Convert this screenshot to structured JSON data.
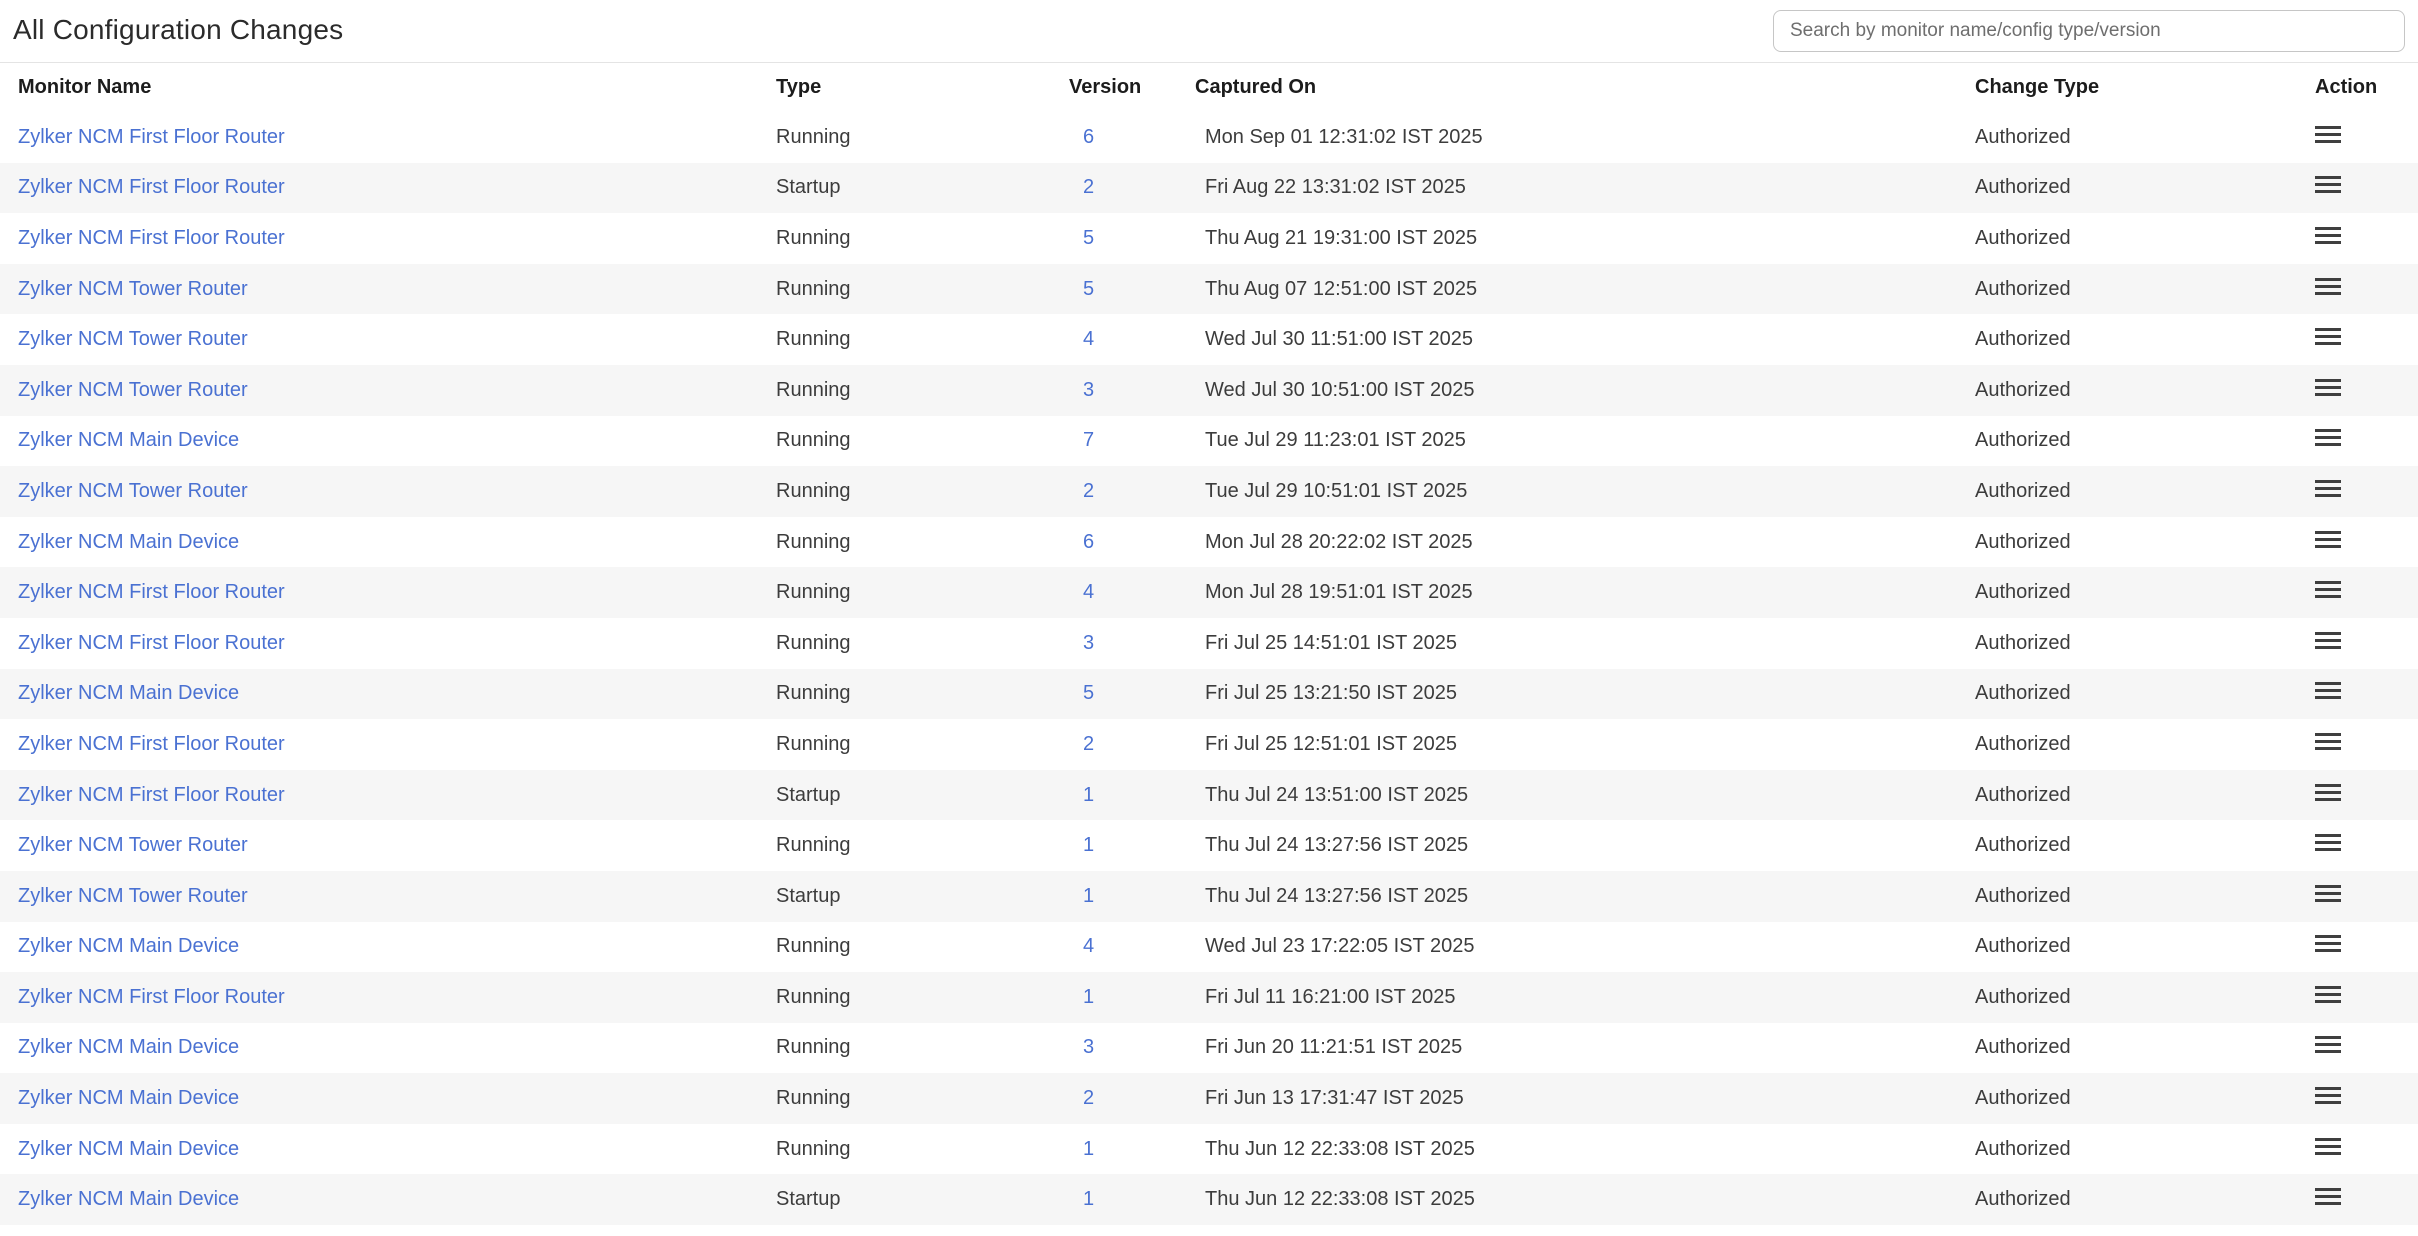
{
  "header": {
    "title": "All Configuration Changes",
    "search_placeholder": "Search by monitor name/config type/version"
  },
  "table": {
    "columns": [
      "Monitor Name",
      "Type",
      "Version",
      "Captured On",
      "Change Type",
      "Action"
    ],
    "action_icon": "menu-icon",
    "rows": [
      {
        "monitor": "Zylker NCM First Floor Router",
        "type": "Running",
        "version": "6",
        "captured_on": "Mon Sep 01 12:31:02 IST 2025",
        "change_type": "Authorized"
      },
      {
        "monitor": "Zylker NCM First Floor Router",
        "type": "Startup",
        "version": "2",
        "captured_on": "Fri Aug 22 13:31:02 IST 2025",
        "change_type": "Authorized"
      },
      {
        "monitor": "Zylker NCM First Floor Router",
        "type": "Running",
        "version": "5",
        "captured_on": "Thu Aug 21 19:31:00 IST 2025",
        "change_type": "Authorized"
      },
      {
        "monitor": "Zylker NCM Tower Router",
        "type": "Running",
        "version": "5",
        "captured_on": "Thu Aug 07 12:51:00 IST 2025",
        "change_type": "Authorized"
      },
      {
        "monitor": "Zylker NCM Tower Router",
        "type": "Running",
        "version": "4",
        "captured_on": "Wed Jul 30 11:51:00 IST 2025",
        "change_type": "Authorized"
      },
      {
        "monitor": "Zylker NCM Tower Router",
        "type": "Running",
        "version": "3",
        "captured_on": "Wed Jul 30 10:51:00 IST 2025",
        "change_type": "Authorized"
      },
      {
        "monitor": "Zylker NCM Main Device",
        "type": "Running",
        "version": "7",
        "captured_on": "Tue Jul 29 11:23:01 IST 2025",
        "change_type": "Authorized"
      },
      {
        "monitor": "Zylker NCM Tower Router",
        "type": "Running",
        "version": "2",
        "captured_on": "Tue Jul 29 10:51:01 IST 2025",
        "change_type": "Authorized"
      },
      {
        "monitor": "Zylker NCM Main Device",
        "type": "Running",
        "version": "6",
        "captured_on": "Mon Jul 28 20:22:02 IST 2025",
        "change_type": "Authorized"
      },
      {
        "monitor": "Zylker NCM First Floor Router",
        "type": "Running",
        "version": "4",
        "captured_on": "Mon Jul 28 19:51:01 IST 2025",
        "change_type": "Authorized"
      },
      {
        "monitor": "Zylker NCM First Floor Router",
        "type": "Running",
        "version": "3",
        "captured_on": "Fri Jul 25 14:51:01 IST 2025",
        "change_type": "Authorized"
      },
      {
        "monitor": "Zylker NCM Main Device",
        "type": "Running",
        "version": "5",
        "captured_on": "Fri Jul 25 13:21:50 IST 2025",
        "change_type": "Authorized"
      },
      {
        "monitor": "Zylker NCM First Floor Router",
        "type": "Running",
        "version": "2",
        "captured_on": "Fri Jul 25 12:51:01 IST 2025",
        "change_type": "Authorized"
      },
      {
        "monitor": "Zylker NCM First Floor Router",
        "type": "Startup",
        "version": "1",
        "captured_on": "Thu Jul 24 13:51:00 IST 2025",
        "change_type": "Authorized"
      },
      {
        "monitor": "Zylker NCM Tower Router",
        "type": "Running",
        "version": "1",
        "captured_on": "Thu Jul 24 13:27:56 IST 2025",
        "change_type": "Authorized"
      },
      {
        "monitor": "Zylker NCM Tower Router",
        "type": "Startup",
        "version": "1",
        "captured_on": "Thu Jul 24 13:27:56 IST 2025",
        "change_type": "Authorized"
      },
      {
        "monitor": "Zylker NCM Main Device",
        "type": "Running",
        "version": "4",
        "captured_on": "Wed Jul 23 17:22:05 IST 2025",
        "change_type": "Authorized"
      },
      {
        "monitor": "Zylker NCM First Floor Router",
        "type": "Running",
        "version": "1",
        "captured_on": "Fri Jul 11 16:21:00 IST 2025",
        "change_type": "Authorized"
      },
      {
        "monitor": "Zylker NCM Main Device",
        "type": "Running",
        "version": "3",
        "captured_on": "Fri Jun 20 11:21:51 IST 2025",
        "change_type": "Authorized"
      },
      {
        "monitor": "Zylker NCM Main Device",
        "type": "Running",
        "version": "2",
        "captured_on": "Fri Jun 13 17:31:47 IST 2025",
        "change_type": "Authorized"
      },
      {
        "monitor": "Zylker NCM Main Device",
        "type": "Running",
        "version": "1",
        "captured_on": "Thu Jun 12 22:33:08 IST 2025",
        "change_type": "Authorized"
      },
      {
        "monitor": "Zylker NCM Main Device",
        "type": "Startup",
        "version": "1",
        "captured_on": "Thu Jun 12 22:33:08 IST 2025",
        "change_type": "Authorized"
      }
    ]
  },
  "colors": {
    "link_blue": "#4a71d2",
    "row_alt": "#f6f6f6",
    "header_text": "#1c1c1c",
    "body_text": "#3c3c3c",
    "icon": "#3f3f3f"
  }
}
